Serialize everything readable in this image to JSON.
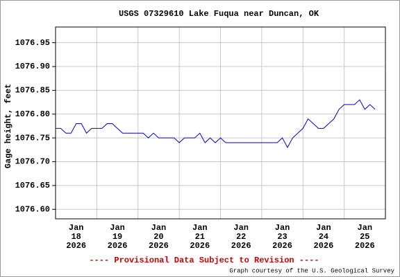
{
  "chart_data": {
    "type": "line",
    "title": "USGS 07329610 Lake Fuqua near Duncan, OK",
    "y_label": "Gage height, feet",
    "footer": "---- Provisional Data Subject to Revision ----",
    "credit": "Graph courtesy of the U.S. Geological Survey",
    "color": "#0000cc",
    "grid": true,
    "ylim": [
      1076.58,
      1076.983
    ],
    "yticks": [
      {
        "value": 1076.6,
        "label": "1076.60"
      },
      {
        "value": 1076.65,
        "label": "1076.65"
      },
      {
        "value": 1076.7,
        "label": "1076.70"
      },
      {
        "value": 1076.75,
        "label": "1076.75"
      },
      {
        "value": 1076.8,
        "label": "1076.80"
      },
      {
        "value": 1076.85,
        "label": "1076.85"
      },
      {
        "value": 1076.9,
        "label": "1076.90"
      },
      {
        "value": 1076.95,
        "label": "1076.95"
      }
    ],
    "xlim": [
      "2026-01-18T00:00",
      "2026-01-26T00:00"
    ],
    "xticks": [
      {
        "value": "2026-01-18",
        "label": [
          "Jan",
          "18",
          "2026"
        ]
      },
      {
        "value": "2026-01-19",
        "label": [
          "Jan",
          "19",
          "2026"
        ]
      },
      {
        "value": "2026-01-20",
        "label": [
          "Jan",
          "20",
          "2026"
        ]
      },
      {
        "value": "2026-01-21",
        "label": [
          "Jan",
          "21",
          "2026"
        ]
      },
      {
        "value": "2026-01-22",
        "label": [
          "Jan",
          "22",
          "2026"
        ]
      },
      {
        "value": "2026-01-23",
        "label": [
          "Jan",
          "23",
          "2026"
        ]
      },
      {
        "value": "2026-01-24",
        "label": [
          "Jan",
          "24",
          "2026"
        ]
      },
      {
        "value": "2026-01-25",
        "label": [
          "Jan",
          "25",
          "2026"
        ]
      }
    ],
    "x": [
      "2026-01-18T00:00",
      "2026-01-18T03:00",
      "2026-01-18T06:00",
      "2026-01-18T09:00",
      "2026-01-18T12:00",
      "2026-01-18T15:00",
      "2026-01-18T18:00",
      "2026-01-18T21:00",
      "2026-01-19T00:00",
      "2026-01-19T03:00",
      "2026-01-19T06:00",
      "2026-01-19T09:00",
      "2026-01-19T12:00",
      "2026-01-19T15:00",
      "2026-01-19T18:00",
      "2026-01-19T21:00",
      "2026-01-20T00:00",
      "2026-01-20T03:00",
      "2026-01-20T06:00",
      "2026-01-20T09:00",
      "2026-01-20T12:00",
      "2026-01-20T15:00",
      "2026-01-20T18:00",
      "2026-01-20T21:00",
      "2026-01-21T00:00",
      "2026-01-21T03:00",
      "2026-01-21T06:00",
      "2026-01-21T09:00",
      "2026-01-21T12:00",
      "2026-01-21T15:00",
      "2026-01-21T18:00",
      "2026-01-21T21:00",
      "2026-01-22T00:00",
      "2026-01-22T03:00",
      "2026-01-22T06:00",
      "2026-01-22T09:00",
      "2026-01-22T12:00",
      "2026-01-22T15:00",
      "2026-01-22T18:00",
      "2026-01-22T21:00",
      "2026-01-23T00:00",
      "2026-01-23T03:00",
      "2026-01-23T06:00",
      "2026-01-23T09:00",
      "2026-01-23T12:00",
      "2026-01-23T15:00",
      "2026-01-23T18:00",
      "2026-01-23T21:00",
      "2026-01-24T00:00",
      "2026-01-24T03:00",
      "2026-01-24T06:00",
      "2026-01-24T09:00",
      "2026-01-24T12:00",
      "2026-01-24T15:00",
      "2026-01-24T18:00",
      "2026-01-24T21:00",
      "2026-01-25T00:00",
      "2026-01-25T03:00",
      "2026-01-25T06:00",
      "2026-01-25T09:00",
      "2026-01-25T12:00",
      "2026-01-25T15:00",
      "2026-01-25T18:00"
    ],
    "values": [
      1076.77,
      1076.77,
      1076.76,
      1076.76,
      1076.78,
      1076.78,
      1076.76,
      1076.77,
      1076.77,
      1076.77,
      1076.78,
      1076.78,
      1076.77,
      1076.76,
      1076.76,
      1076.76,
      1076.76,
      1076.76,
      1076.75,
      1076.76,
      1076.75,
      1076.75,
      1076.75,
      1076.75,
      1076.74,
      1076.75,
      1076.75,
      1076.75,
      1076.76,
      1076.74,
      1076.75,
      1076.74,
      1076.75,
      1076.74,
      1076.74,
      1076.74,
      1076.74,
      1076.74,
      1076.74,
      1076.74,
      1076.74,
      1076.74,
      1076.74,
      1076.74,
      1076.75,
      1076.73,
      1076.75,
      1076.76,
      1076.77,
      1076.79,
      1076.78,
      1076.77,
      1076.77,
      1076.78,
      1076.79,
      1076.81,
      1076.82,
      1076.82,
      1076.82,
      1076.83,
      1076.81,
      1076.82,
      1076.81
    ]
  }
}
